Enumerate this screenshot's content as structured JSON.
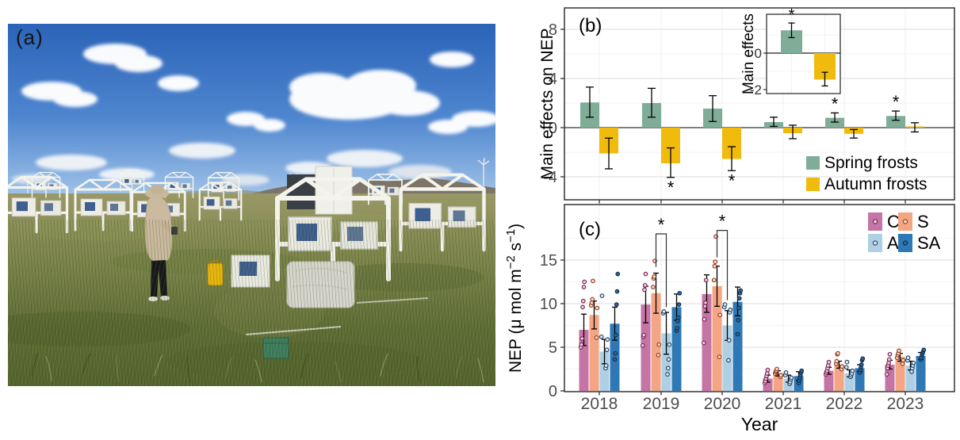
{
  "panels": {
    "a": {
      "label": "(a)"
    }
  },
  "chart_data": [
    {
      "id": "panel-b",
      "type": "bar",
      "panel_label": "(b)",
      "ylabel": "Main effects on NEP",
      "categories": [
        "2018",
        "2019",
        "2020",
        "2021",
        "2022",
        "2023"
      ],
      "yticks": [
        8,
        4,
        0,
        -4
      ],
      "minor_yticks": [
        6,
        2,
        -2
      ],
      "ylim": [
        -5.9,
        9.7
      ],
      "grid": true,
      "legend_position": "bottom-right",
      "sig_label": "*",
      "series": [
        {
          "name": "Spring frosts",
          "color": "#7FAD97",
          "values": [
            2.05,
            2.0,
            1.55,
            0.45,
            0.8,
            0.95
          ],
          "err_lo": [
            0.85,
            0.85,
            0.5,
            0.1,
            0.45,
            0.6
          ],
          "err_hi": [
            3.3,
            3.2,
            2.6,
            0.85,
            1.2,
            1.35
          ],
          "sig": [
            false,
            false,
            false,
            false,
            true,
            true
          ]
        },
        {
          "name": "Autumn frosts",
          "color": "#F0BB0C",
          "values": [
            -2.1,
            -2.9,
            -2.55,
            -0.45,
            -0.5,
            0.1
          ],
          "err_lo": [
            -3.35,
            -4.05,
            -3.5,
            -0.9,
            -0.85,
            -0.35
          ],
          "err_hi": [
            -0.85,
            -1.65,
            -1.55,
            0.2,
            -0.15,
            0.4
          ],
          "sig": [
            false,
            true,
            true,
            false,
            false,
            false
          ]
        }
      ]
    },
    {
      "id": "panel-b-inset",
      "type": "bar",
      "ylabel": "Main effects",
      "categories": [
        "Spring frosts",
        "Autumn frosts"
      ],
      "yticks": [
        0,
        -2
      ],
      "minor_yticks": [
        1,
        -1
      ],
      "ylim": [
        -2.2,
        2.1
      ],
      "sig_label": "*",
      "values": [
        1.25,
        -1.45
      ],
      "err_lo": [
        0.85,
        -1.8
      ],
      "err_hi": [
        1.65,
        -1.05
      ],
      "sig": [
        true,
        false
      ],
      "colors": [
        "#7FAD97",
        "#F0BB0C"
      ]
    },
    {
      "id": "panel-c",
      "type": "bar",
      "panel_label": "(c)",
      "xlabel": "Year",
      "ylabel_parts": [
        {
          "t": "NEP (μ mol m"
        },
        {
          "t": "−2",
          "sup": true
        },
        {
          "t": " s"
        },
        {
          "t": "−1",
          "sup": true
        },
        {
          "t": ")"
        }
      ],
      "categories": [
        "2018",
        "2019",
        "2020",
        "2021",
        "2022",
        "2023"
      ],
      "yticks": [
        0,
        5,
        10,
        15
      ],
      "minor_yticks": [
        2.5,
        7.5,
        12.5,
        17.5
      ],
      "ylim": [
        0,
        21.4
      ],
      "grid": true,
      "legend_position": "top-right",
      "sig_label": "*",
      "series": [
        {
          "name": "C",
          "color": "#C475A5",
          "point_fill": "#EBCADD",
          "point_stroke": "#77214F",
          "values": [
            7.0,
            9.9,
            11.1,
            1.4,
            2.3,
            3.0
          ],
          "err_lo": [
            5.2,
            7.8,
            9.0,
            1.0,
            1.9,
            2.5
          ],
          "err_hi": [
            8.8,
            12.0,
            13.3,
            1.8,
            2.7,
            3.5
          ],
          "points": [
            [
              5.0,
              5.3,
              6.0,
              9.6,
              10.3,
              11.9,
              12.5
            ],
            [
              5.2,
              6.2,
              6.4,
              11.6,
              12.1,
              13.4
            ],
            [
              5.5,
              8.2,
              9.7,
              10.1,
              12.7
            ],
            [
              0.9,
              1.1,
              1.4,
              1.7,
              2.0,
              2.4
            ],
            [
              1.9,
              2.1,
              2.3,
              2.6,
              2.9,
              3.3
            ],
            [
              1.9,
              2.6,
              2.9,
              3.2,
              3.6,
              4.2
            ]
          ]
        },
        {
          "name": "S",
          "color": "#F4A583",
          "point_fill": "#FBD7C2",
          "point_stroke": "#8C3A1E",
          "values": [
            8.7,
            11.2,
            12.0,
            2.0,
            3.0,
            3.9
          ],
          "err_lo": [
            7.1,
            8.9,
            9.7,
            1.7,
            2.6,
            3.4
          ],
          "err_hi": [
            10.3,
            13.5,
            14.3,
            2.3,
            3.4,
            4.3
          ],
          "points": [
            [
              6.1,
              9.5,
              9.8,
              10.1,
              10.5,
              12.6
            ],
            [
              4.1,
              5.3,
              11.9,
              12.9,
              13.1,
              14.9
            ],
            [
              3.9,
              8.7,
              12.7,
              14.3,
              14.8,
              17.7
            ],
            [
              1.6,
              1.8,
              2.0,
              2.2,
              2.3,
              2.5
            ],
            [
              2.5,
              2.8,
              3.1,
              3.4,
              4.2,
              4.3
            ],
            [
              3.1,
              3.5,
              3.8,
              4.1,
              4.3,
              4.6
            ]
          ]
        },
        {
          "name": "A",
          "color": "#AFD0E4",
          "point_fill": "#D6E8F3",
          "point_stroke": "#1F3E63",
          "values": [
            4.5,
            6.6,
            7.5,
            1.4,
            2.0,
            2.9
          ],
          "err_lo": [
            3.1,
            4.2,
            5.8,
            1.0,
            1.6,
            2.4
          ],
          "err_hi": [
            5.9,
            9.0,
            9.2,
            1.8,
            2.4,
            3.4
          ],
          "points": [
            [
              2.6,
              2.9,
              4.7,
              5.9,
              6.2,
              10.9
            ],
            [
              1.9,
              2.6,
              3.6,
              5.3,
              8.9,
              9.1
            ],
            [
              3.5,
              5.8,
              9.0,
              9.3,
              9.6,
              9.9
            ],
            [
              0.8,
              1.0,
              1.3,
              1.5,
              1.8,
              2.1
            ],
            [
              1.6,
              1.8,
              2.0,
              2.3,
              2.7,
              3.3
            ],
            [
              2.2,
              2.6,
              2.9,
              3.2,
              3.5,
              3.8
            ]
          ]
        },
        {
          "name": "SA",
          "color": "#2E79B5",
          "point_fill": "#2B6699",
          "point_stroke": "#132C47",
          "values": [
            7.7,
            9.6,
            10.2,
            1.7,
            2.6,
            4.0
          ],
          "err_lo": [
            5.8,
            8.1,
            8.6,
            1.2,
            2.2,
            3.6
          ],
          "err_hi": [
            9.6,
            11.1,
            11.9,
            2.2,
            3.0,
            4.4
          ],
          "points": [
            [
              3.6,
              4.3,
              6.4,
              9.9,
              11.4,
              13.4
            ],
            [
              6.9,
              7.2,
              8.0,
              8.4,
              9.9,
              11.2
            ],
            [
              6.5,
              8.1,
              9.5,
              10.6,
              11.2,
              11.5
            ],
            [
              0.9,
              1.2,
              1.5,
              1.8,
              2.1,
              2.3
            ],
            [
              2.1,
              2.4,
              2.7,
              3.0,
              3.5,
              3.7
            ],
            [
              3.6,
              3.8,
              4.1,
              4.3,
              4.5,
              4.7
            ]
          ]
        }
      ],
      "sig_brackets": [
        {
          "category": "2019",
          "from": 1,
          "to": 2,
          "top": 18.0,
          "from_drop": 14.2,
          "to_drop": 9.6
        },
        {
          "category": "2020",
          "from": 1,
          "to": 2,
          "top": 18.4,
          "from_drop": 15.3,
          "to_drop": 10.4
        }
      ]
    }
  ]
}
